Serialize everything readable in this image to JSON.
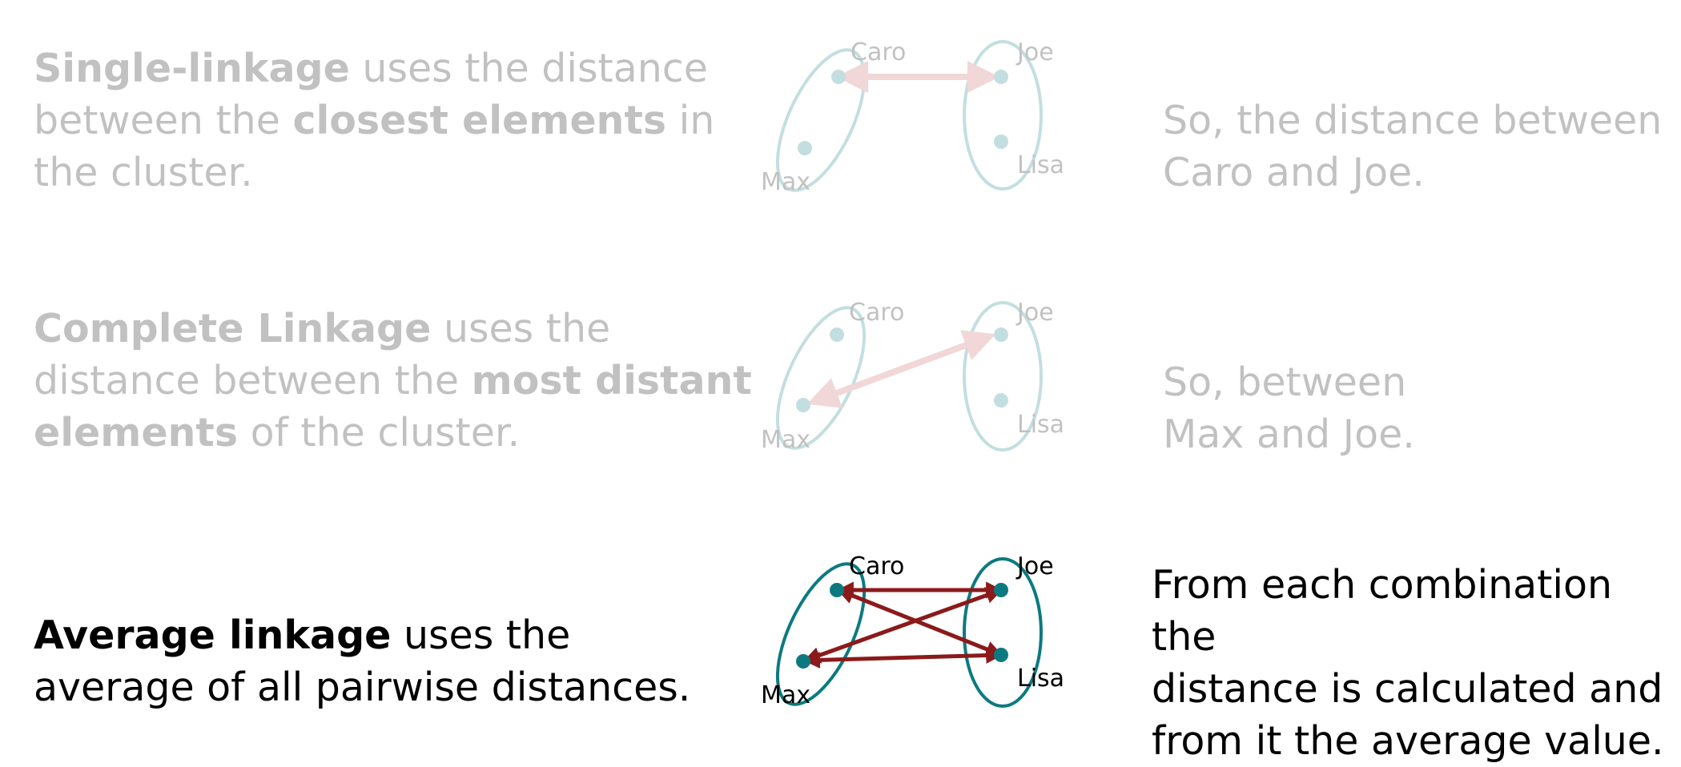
{
  "colors": {
    "cluster_outline": "#0b7a80",
    "point": "#0b7a80",
    "arrow_faded": "#c85a5a",
    "arrow_active": "#8b1a1a",
    "text": "#000000"
  },
  "rows": [
    {
      "method_bold": "Single-linkage",
      "method_rest": " uses the distance between the ",
      "emphasis_bold": "closest elements",
      "tail": " in the cluster.",
      "explanation_line1": "So, the distance between",
      "explanation_line2": "Caro and Joe.",
      "labels": {
        "caro": "Caro",
        "joe": "Joe",
        "max": "Max",
        "lisa": "Lisa"
      }
    },
    {
      "method_bold": "Complete Linkage",
      "method_rest": " uses the distance between the ",
      "emphasis_bold": "most distant elements",
      "tail": " of the cluster.",
      "explanation_line1": "So, between",
      "explanation_line2": "Max and Joe.",
      "labels": {
        "caro": "Caro",
        "joe": "Joe",
        "max": "Max",
        "lisa": "Lisa"
      }
    },
    {
      "method_bold": "Average linkage",
      "method_rest": " uses the",
      "line2": "average of all pairwise distances.",
      "explanation_line1": "From each combination the",
      "explanation_line2": "distance is calculated and",
      "explanation_line3": "from it the average value.",
      "labels": {
        "caro": "Caro",
        "joe": "Joe",
        "max": "Max",
        "lisa": "Lisa"
      }
    }
  ]
}
